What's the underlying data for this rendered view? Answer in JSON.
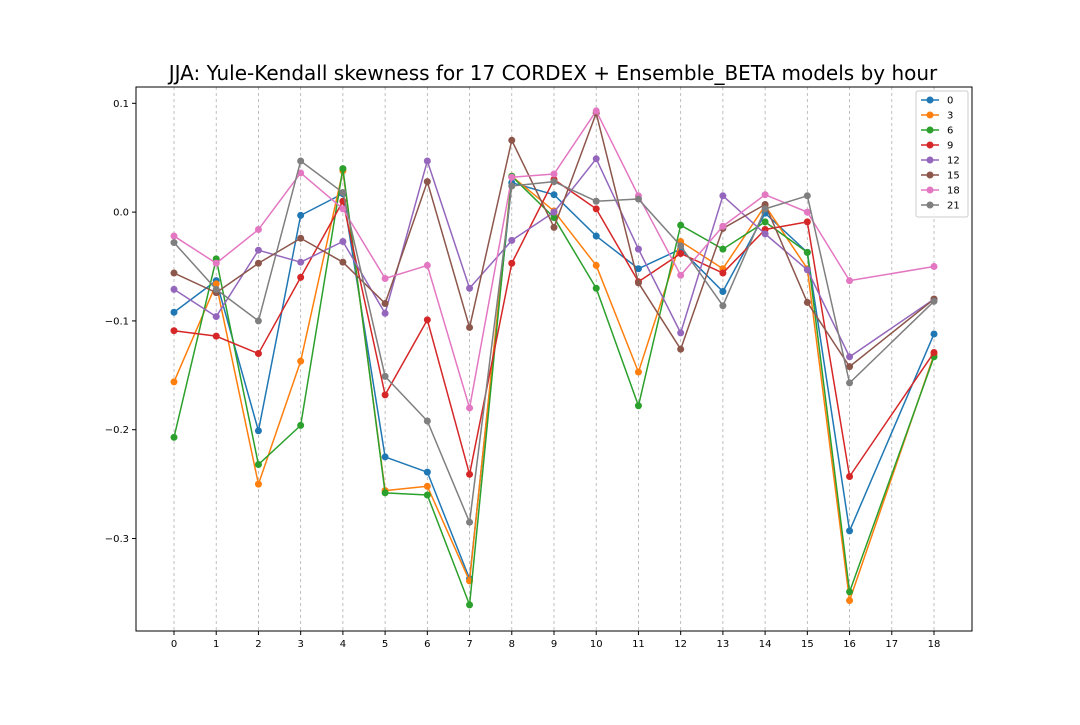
{
  "chart_data": {
    "type": "line",
    "title": "JJA: Yule-Kendall skewness for 17 CORDEX + Ensemble_BETA models by hour",
    "xlabel": "",
    "ylabel": "",
    "x_positions": [
      0,
      1,
      2,
      3,
      4,
      5,
      6,
      7,
      8,
      9,
      10,
      11,
      12,
      13,
      14,
      15,
      16,
      17,
      18
    ],
    "x_tick_labels": [
      "0",
      "1",
      "2",
      "3",
      "4",
      "5",
      "6",
      "7",
      "8",
      "9",
      "10",
      "11",
      "12",
      "13",
      "14",
      "15",
      "16",
      "17",
      "18"
    ],
    "xlim": [
      -0.9,
      18.9
    ],
    "ylim": [
      -0.385,
      0.115
    ],
    "y_ticks": [
      -0.3,
      -0.2,
      -0.1,
      0.0,
      0.1
    ],
    "y_tick_labels": [
      "−0.3",
      "−0.2",
      "−0.1",
      "0.0",
      "0.1"
    ],
    "grid": "x-dashed",
    "legend_position": "top-right",
    "series_x": [
      0,
      1,
      2,
      3,
      4,
      5,
      6,
      7,
      8,
      9,
      10,
      11,
      12,
      13,
      14,
      15,
      16,
      18
    ],
    "series": [
      {
        "name": "0",
        "color": "#1f77b4",
        "values": [
          -0.092,
          -0.063,
          -0.201,
          -0.003,
          0.017,
          -0.225,
          -0.239,
          -0.337,
          0.027,
          0.016,
          -0.022,
          -0.052,
          -0.034,
          -0.073,
          -0.001,
          -0.037,
          -0.293,
          -0.112
        ]
      },
      {
        "name": "3",
        "color": "#ff7f0e",
        "values": [
          -0.156,
          -0.066,
          -0.25,
          -0.137,
          0.038,
          -0.256,
          -0.252,
          -0.339,
          0.033,
          0.001,
          -0.049,
          -0.147,
          -0.027,
          -0.052,
          0.006,
          -0.052,
          -0.357,
          -0.131
        ]
      },
      {
        "name": "6",
        "color": "#2ca02c",
        "values": [
          -0.207,
          -0.043,
          -0.232,
          -0.196,
          0.04,
          -0.258,
          -0.26,
          -0.361,
          0.033,
          -0.005,
          -0.07,
          -0.178,
          -0.012,
          -0.034,
          -0.009,
          -0.037,
          -0.349,
          -0.133
        ]
      },
      {
        "name": "9",
        "color": "#d62728",
        "values": [
          -0.109,
          -0.114,
          -0.13,
          -0.06,
          0.01,
          -0.168,
          -0.099,
          -0.241,
          -0.047,
          0.03,
          0.003,
          -0.064,
          -0.038,
          -0.056,
          -0.016,
          -0.009,
          -0.243,
          -0.129
        ]
      },
      {
        "name": "12",
        "color": "#9467bd",
        "values": [
          -0.071,
          -0.096,
          -0.035,
          -0.046,
          -0.027,
          -0.093,
          0.047,
          -0.07,
          -0.026,
          0.0,
          0.049,
          -0.034,
          -0.111,
          0.015,
          -0.02,
          -0.053,
          -0.133,
          -0.08
        ]
      },
      {
        "name": "15",
        "color": "#8c564b",
        "values": [
          -0.056,
          -0.074,
          -0.047,
          -0.024,
          -0.046,
          -0.084,
          0.028,
          -0.106,
          0.066,
          -0.014,
          0.091,
          -0.065,
          -0.126,
          -0.015,
          0.007,
          -0.083,
          -0.142,
          -0.08
        ]
      },
      {
        "name": "18",
        "color": "#e377c2",
        "values": [
          -0.022,
          -0.047,
          -0.016,
          0.036,
          0.003,
          -0.061,
          -0.049,
          -0.18,
          0.032,
          0.035,
          0.093,
          0.015,
          -0.058,
          -0.013,
          0.016,
          0.0,
          -0.063,
          -0.05
        ]
      },
      {
        "name": "21",
        "color": "#7f7f7f",
        "values": [
          -0.028,
          -0.071,
          -0.1,
          0.047,
          0.018,
          -0.151,
          -0.192,
          -0.285,
          0.024,
          0.028,
          0.01,
          0.012,
          -0.031,
          -0.086,
          0.003,
          0.015,
          -0.157,
          -0.082
        ]
      }
    ]
  }
}
